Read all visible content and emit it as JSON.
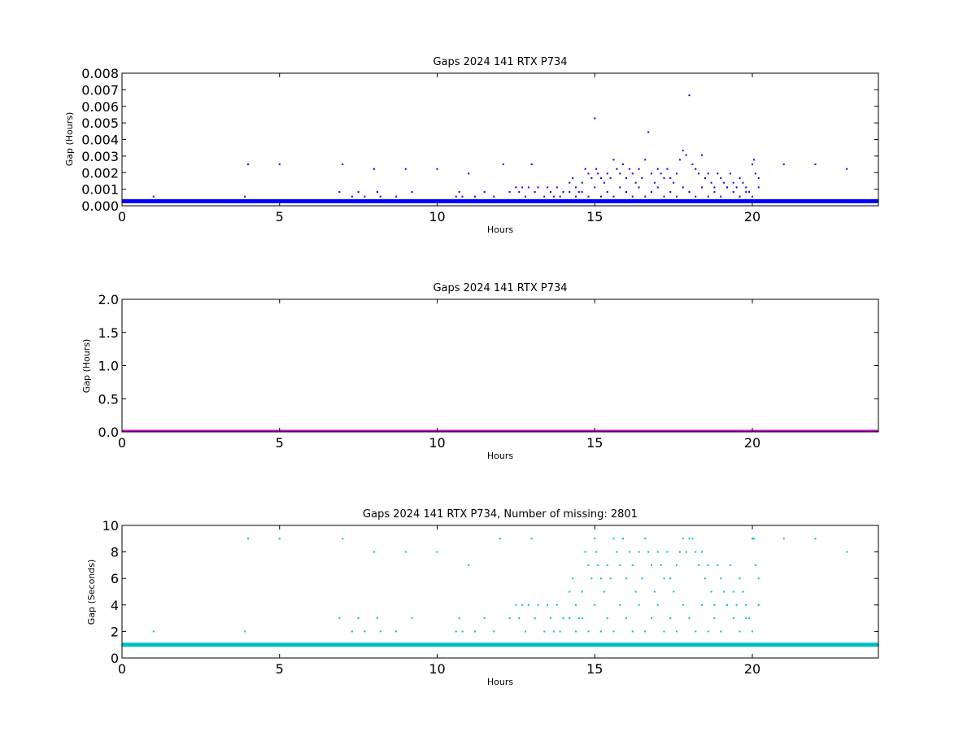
{
  "chart_data": [
    {
      "type": "scatter",
      "title": "Gaps 2024 141 RTX  P734",
      "xlabel": "Hours",
      "ylabel": "Gap (Hours)",
      "xlim": [
        0,
        24
      ],
      "ylim": [
        0,
        0.008
      ],
      "x_ticks": [
        0,
        5,
        10,
        15,
        20
      ],
      "x_tick_labels": [
        "0",
        "5",
        "10",
        "15",
        "20"
      ],
      "y_ticks": [
        0,
        0.001,
        0.002,
        0.003,
        0.004,
        0.005,
        0.006,
        0.007,
        0.008
      ],
      "y_tick_labels": [
        "0.000",
        "0.001",
        "0.002",
        "0.003",
        "0.004",
        "0.005",
        "0.006",
        "0.007",
        "0.008"
      ],
      "grid": false,
      "legend": "none",
      "color": "#0000ff",
      "baseline": {
        "y": 0.000278,
        "x_range": [
          0,
          24
        ]
      },
      "series": [
        {
          "x": [
            1.0,
            3.9,
            4.0,
            5.0,
            6.9,
            7.0,
            7.3,
            7.5,
            7.7,
            8.0,
            8.1,
            8.2,
            8.7,
            9.0,
            9.2,
            10.0,
            10.6,
            10.7,
            10.8,
            11.0,
            11.2,
            11.5,
            11.8,
            12.1,
            12.3,
            12.5,
            12.6,
            12.7,
            12.8,
            12.9,
            13.0,
            13.1,
            13.2,
            13.4,
            13.5,
            13.6,
            13.7,
            13.8,
            13.9,
            14.0,
            14.2,
            14.3,
            14.4,
            14.5,
            14.6,
            14.7,
            14.8,
            14.9,
            15.0,
            15.05,
            15.1,
            15.2,
            15.3,
            15.4,
            15.5,
            15.6,
            15.7,
            15.8,
            15.9,
            16.0,
            16.1,
            16.2,
            16.3,
            16.4,
            16.5,
            16.6,
            16.7,
            16.8,
            16.9,
            17.0,
            17.1,
            17.2,
            17.3,
            17.4,
            17.5,
            17.6,
            17.7,
            17.8,
            17.9,
            18.0,
            18.1,
            18.2,
            18.3,
            18.4,
            18.5,
            18.6,
            18.7,
            18.8,
            18.9,
            19.0,
            19.1,
            19.2,
            19.3,
            19.4,
            19.5,
            19.6,
            19.7,
            19.8,
            19.9,
            20.0,
            20.05,
            20.1,
            20.2,
            21.0,
            22.0,
            23.0
          ],
          "y": [
            0.000556,
            0.000556,
            0.0025,
            0.0025,
            0.000833,
            0.0025,
            0.000556,
            0.000833,
            0.000556,
            0.002222,
            0.000833,
            0.000556,
            0.000556,
            0.002222,
            0.000833,
            0.002222,
            0.000556,
            0.000833,
            0.000556,
            0.001944,
            0.000556,
            0.000833,
            0.000556,
            0.0025,
            0.000833,
            0.001111,
            0.000833,
            0.001111,
            0.000556,
            0.001111,
            0.0025,
            0.000833,
            0.001111,
            0.000556,
            0.001111,
            0.000833,
            0.000556,
            0.001111,
            0.000556,
            0.000833,
            0.001389,
            0.001667,
            0.001111,
            0.000833,
            0.001389,
            0.002222,
            0.001944,
            0.001667,
            0.005278,
            0.002222,
            0.001944,
            0.001667,
            0.001389,
            0.001944,
            0.001667,
            0.002778,
            0.002222,
            0.001944,
            0.0025,
            0.001667,
            0.002222,
            0.001944,
            0.001389,
            0.002222,
            0.001667,
            0.002778,
            0.004444,
            0.001944,
            0.001389,
            0.002222,
            0.001944,
            0.001667,
            0.002222,
            0.001667,
            0.001389,
            0.001944,
            0.002778,
            0.003333,
            0.003056,
            0.006667,
            0.0025,
            0.002222,
            0.001944,
            0.003056,
            0.001667,
            0.001944,
            0.001389,
            0.001111,
            0.001944,
            0.001667,
            0.001389,
            0.001111,
            0.001944,
            0.001389,
            0.001111,
            0.001667,
            0.001389,
            0.001111,
            0.000833,
            0.0025,
            0.002778,
            0.001944,
            0.001667,
            0.0025,
            0.0025,
            0.002222
          ]
        },
        {
          "x": [
            14.2,
            14.4,
            14.6,
            14.8,
            15.0,
            15.2,
            15.4,
            15.6,
            15.8,
            16.0,
            16.2,
            16.4,
            16.6,
            16.8,
            17.0,
            17.2,
            17.4,
            17.6,
            17.8,
            18.0,
            18.2,
            18.4,
            18.6,
            18.8,
            19.0,
            19.2,
            19.4,
            19.6,
            19.8,
            20.0,
            20.2
          ],
          "y": [
            0.000833,
            0.000556,
            0.000833,
            0.000556,
            0.001111,
            0.000556,
            0.000833,
            0.000556,
            0.001111,
            0.000833,
            0.000556,
            0.001111,
            0.000556,
            0.000833,
            0.001111,
            0.000556,
            0.000833,
            0.000556,
            0.001111,
            0.000833,
            0.000556,
            0.001111,
            0.000556,
            0.000833,
            0.000556,
            0.001111,
            0.000833,
            0.000556,
            0.000833,
            0.000556,
            0.001111
          ]
        }
      ]
    },
    {
      "type": "scatter",
      "title": "Gaps 2024 141 RTX  P734",
      "xlabel": "Hours",
      "ylabel": "Gap (Hours)",
      "xlim": [
        0,
        24
      ],
      "ylim": [
        0,
        2.0
      ],
      "x_ticks": [
        0,
        5,
        10,
        15,
        20
      ],
      "x_tick_labels": [
        "0",
        "5",
        "10",
        "15",
        "20"
      ],
      "y_ticks": [
        0,
        0.5,
        1.0,
        1.5,
        2.0
      ],
      "y_tick_labels": [
        "0.0",
        "0.5",
        "1.0",
        "1.5",
        "2.0"
      ],
      "grid": false,
      "legend": "none",
      "color": "#bf00bf",
      "baseline": {
        "y": 0.0,
        "x_range": [
          0,
          24
        ]
      },
      "series": []
    },
    {
      "type": "scatter",
      "title": "Gaps 2024 141 RTX  P734, Number of missing: 2801",
      "xlabel": "Hours",
      "ylabel": "Gap (Seconds)",
      "xlim": [
        0,
        24
      ],
      "ylim": [
        0,
        10
      ],
      "x_ticks": [
        0,
        5,
        10,
        15,
        20
      ],
      "x_tick_labels": [
        "0",
        "5",
        "10",
        "15",
        "20"
      ],
      "y_ticks": [
        0,
        2,
        4,
        6,
        8,
        10
      ],
      "y_tick_labels": [
        "0",
        "2",
        "4",
        "6",
        "8",
        "10"
      ],
      "grid": false,
      "legend": "none",
      "color": "#00bfbf",
      "baseline": {
        "y": 1,
        "x_range": [
          0,
          24
        ]
      },
      "series": [
        {
          "x": [
            1.0,
            3.9,
            4.0,
            5.0,
            6.9,
            7.0,
            7.3,
            7.5,
            7.7,
            8.0,
            8.1,
            8.2,
            8.7,
            9.0,
            9.2,
            10.0,
            10.6,
            10.7,
            10.8,
            11.0,
            11.2,
            11.5,
            11.8,
            12.0,
            12.3,
            12.5,
            12.6,
            12.7,
            12.8,
            12.9,
            13.0,
            13.1,
            13.2,
            13.4,
            13.5,
            13.6,
            13.7,
            13.8,
            13.9,
            14.0,
            14.2,
            14.3,
            14.4,
            14.5,
            14.6,
            14.7,
            14.8,
            14.9,
            15.0,
            15.05,
            15.1,
            15.2,
            15.3,
            15.4,
            15.5,
            15.6,
            15.7,
            15.8,
            15.9,
            16.0,
            16.1,
            16.2,
            16.3,
            16.4,
            16.5,
            16.6,
            16.7,
            16.8,
            16.9,
            17.0,
            17.1,
            17.2,
            17.3,
            17.4,
            17.5,
            17.6,
            17.7,
            17.8,
            17.9,
            18.0,
            18.1,
            18.2,
            18.3,
            18.4,
            18.5,
            18.6,
            18.7,
            18.8,
            18.9,
            19.0,
            19.1,
            19.2,
            19.3,
            19.4,
            19.5,
            19.6,
            19.7,
            19.8,
            19.9,
            20.0,
            20.05,
            20.1,
            20.2,
            21.0,
            22.0,
            23.0
          ],
          "y": [
            2,
            2,
            9,
            9,
            3,
            9,
            2,
            3,
            2,
            8,
            3,
            2,
            2,
            8,
            3,
            8,
            2,
            3,
            2,
            7,
            2,
            3,
            2,
            9,
            3,
            4,
            3,
            4,
            2,
            4,
            9,
            3,
            4,
            2,
            4,
            3,
            2,
            4,
            2,
            3,
            5,
            6,
            4,
            3,
            5,
            8,
            7,
            6,
            9,
            8,
            7,
            6,
            5,
            7,
            6,
            9,
            8,
            7,
            9,
            6,
            8,
            7,
            5,
            8,
            6,
            9,
            8,
            7,
            5,
            8,
            7,
            6,
            8,
            6,
            5,
            7,
            8,
            9,
            8,
            9,
            9,
            8,
            7,
            8,
            6,
            7,
            5,
            4,
            7,
            6,
            5,
            4,
            7,
            5,
            4,
            6,
            5,
            4,
            3,
            9,
            9,
            7,
            6,
            9,
            9,
            8
          ]
        },
        {
          "x": [
            14.2,
            14.4,
            14.6,
            14.8,
            15.0,
            15.2,
            15.4,
            15.6,
            15.8,
            16.0,
            16.2,
            16.4,
            16.6,
            16.8,
            17.0,
            17.2,
            17.4,
            17.6,
            17.8,
            18.0,
            18.2,
            18.4,
            18.6,
            18.8,
            19.0,
            19.2,
            19.4,
            19.6,
            19.8,
            20.0,
            20.2
          ],
          "y": [
            3,
            2,
            3,
            2,
            4,
            2,
            3,
            2,
            4,
            3,
            2,
            4,
            2,
            3,
            4,
            2,
            3,
            2,
            4,
            3,
            2,
            4,
            2,
            3,
            2,
            4,
            3,
            2,
            3,
            2,
            4
          ]
        }
      ]
    }
  ]
}
